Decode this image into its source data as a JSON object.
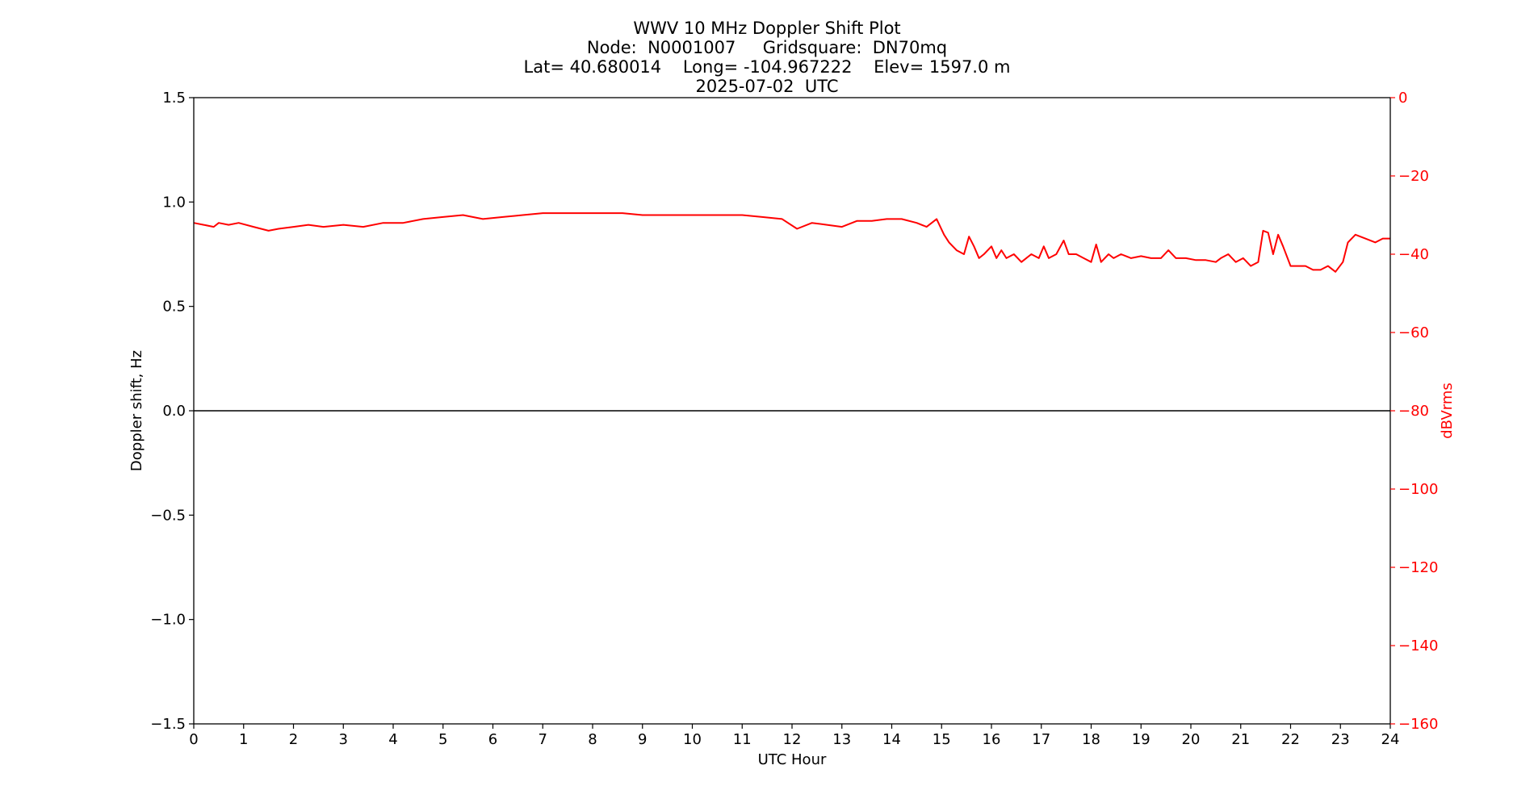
{
  "chart_data": {
    "type": "line",
    "title_lines": [
      "WWV 10 MHz Doppler Shift Plot",
      "Node:  N0001007     Gridsquare:  DN70mq",
      "Lat= 40.680014    Long= -104.967222    Elev= 1597.0 m",
      "2025-07-02  UTC"
    ],
    "xlabel": "UTC Hour",
    "ylabel": "Doppler shift, Hz",
    "y2label": "dBVrms",
    "xlim": [
      0,
      24
    ],
    "ylim": [
      -1.5,
      1.5
    ],
    "y2lim": [
      -160,
      0
    ],
    "x_ticks": [
      "0",
      "1",
      "2",
      "3",
      "4",
      "5",
      "6",
      "7",
      "8",
      "9",
      "10",
      "11",
      "12",
      "13",
      "14",
      "15",
      "16",
      "17",
      "18",
      "19",
      "20",
      "21",
      "22",
      "23",
      "24"
    ],
    "y_ticks": [
      "1.5",
      "1.0",
      "0.5",
      "0.0",
      "−0.5",
      "−1.0",
      "−1.5"
    ],
    "y_tick_values": [
      1.5,
      1.0,
      0.5,
      0.0,
      -0.5,
      -1.0,
      -1.5
    ],
    "y2_ticks": [
      "0",
      "−20",
      "−40",
      "−60",
      "−80",
      "−100",
      "−120",
      "−140",
      "−160"
    ],
    "y2_tick_values": [
      0,
      -20,
      -40,
      -60,
      -80,
      -100,
      -120,
      -140,
      -160
    ],
    "grid": false,
    "colors": {
      "axis": "#000000",
      "secondary_axis": "#ff0000",
      "signal_line": "#ff0000",
      "doppler_line": "#000000"
    },
    "series": [
      {
        "axis": "left",
        "color": "#000000",
        "x": [
          0,
          24
        ],
        "y": [
          0.0,
          0.0
        ]
      },
      {
        "axis": "right",
        "color": "#ff0000",
        "x": [
          0,
          0.2,
          0.4,
          0.5,
          0.7,
          0.9,
          1.2,
          1.5,
          1.7,
          2.0,
          2.3,
          2.6,
          3.0,
          3.4,
          3.8,
          4.2,
          4.6,
          5.0,
          5.4,
          5.8,
          6.2,
          6.6,
          7.0,
          7.4,
          7.8,
          8.2,
          8.6,
          9.0,
          9.4,
          9.8,
          10.2,
          10.6,
          11.0,
          11.4,
          11.8,
          12.1,
          12.4,
          12.7,
          13.0,
          13.3,
          13.6,
          13.9,
          14.2,
          14.5,
          14.7,
          14.9,
          15.05,
          15.15,
          15.3,
          15.45,
          15.55,
          15.65,
          15.75,
          15.85,
          16.0,
          16.1,
          16.2,
          16.3,
          16.45,
          16.6,
          16.8,
          16.95,
          17.05,
          17.15,
          17.3,
          17.45,
          17.55,
          17.7,
          17.85,
          18.0,
          18.1,
          18.2,
          18.35,
          18.45,
          18.6,
          18.8,
          19.0,
          19.2,
          19.4,
          19.55,
          19.7,
          19.9,
          20.1,
          20.3,
          20.5,
          20.6,
          20.75,
          20.9,
          21.05,
          21.2,
          21.35,
          21.45,
          21.55,
          21.65,
          21.75,
          21.85,
          22.0,
          22.15,
          22.3,
          22.45,
          22.6,
          22.75,
          22.9,
          23.05,
          23.15,
          23.3,
          23.5,
          23.7,
          23.85,
          24.0
        ],
        "y": [
          -32,
          -32.5,
          -33,
          -32,
          -32.5,
          -32,
          -33,
          -34,
          -33.5,
          -33,
          -32.5,
          -33,
          -32.5,
          -33,
          -32,
          -32,
          -31,
          -30.5,
          -30,
          -31,
          -30.5,
          -30,
          -29.5,
          -29.5,
          -29.5,
          -29.5,
          -29.5,
          -30,
          -30,
          -30,
          -30,
          -30,
          -30,
          -30.5,
          -31,
          -33.5,
          -32,
          -32.5,
          -33,
          -31.5,
          -31.5,
          -31,
          -31,
          -32,
          -33,
          -31,
          -35,
          -37,
          -39,
          -40,
          -35.5,
          -38,
          -41,
          -40,
          -38,
          -41,
          -39,
          -41,
          -40,
          -42,
          -40,
          -41,
          -38,
          -41,
          -40,
          -36.5,
          -40,
          -40,
          -41,
          -42,
          -37.5,
          -42,
          -40,
          -41,
          -40,
          -41,
          -40.5,
          -41,
          -41,
          -39,
          -41,
          -41,
          -41.5,
          -41.5,
          -42,
          -41,
          -40,
          -42,
          -41,
          -43,
          -42,
          -34,
          -34.5,
          -40,
          -35,
          -38,
          -43,
          -43,
          -43,
          -44,
          -44,
          -43,
          -44.5,
          -42,
          -37,
          -35,
          -36,
          -37,
          -36,
          -36
        ]
      }
    ]
  }
}
